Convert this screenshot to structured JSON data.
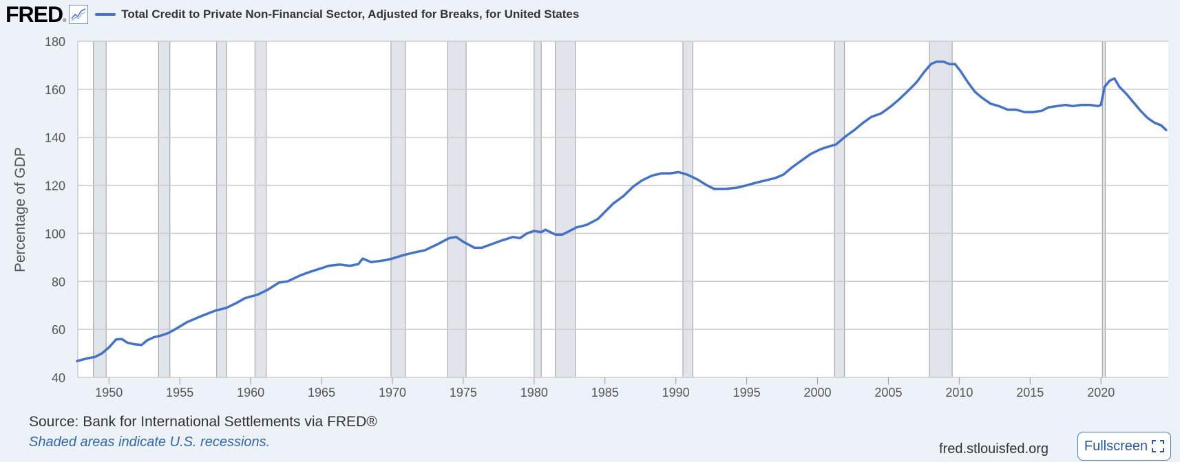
{
  "header": {
    "logo_text": "FRED",
    "logo_mark": "®",
    "graph_icon": "line-chart-icon",
    "series_title": "Total Credit to Private Non-Financial Sector, Adjusted for Breaks, for United States"
  },
  "footer": {
    "source": "Source: Bank for International Settlements via FRED®",
    "shaded_note": "Shaded areas indicate U.S. recessions.",
    "site_url": "fred.stlouisfed.org",
    "fullscreen_label": "Fullscreen",
    "fullscreen_icon": "expand-icon"
  },
  "colors": {
    "line": "#4472c4",
    "recession": "#e1e5eb",
    "grid": "#cccccc",
    "background": "#edf2f9"
  },
  "chart_data": {
    "type": "line",
    "title": "Total Credit to Private Non-Financial Sector, Adjusted for Breaks, for United States",
    "xlabel": "",
    "ylabel": "Percentage of GDP",
    "xlim": [
      1947.8,
      2024.75
    ],
    "ylim": [
      40,
      180
    ],
    "grid": true,
    "yticks": [
      40,
      60,
      80,
      100,
      120,
      140,
      160,
      180
    ],
    "xticks": [
      1950,
      1955,
      1960,
      1965,
      1970,
      1975,
      1980,
      1985,
      1990,
      1995,
      2000,
      2005,
      2010,
      2015,
      2020
    ],
    "recessions": [
      [
        1948.9,
        1949.8
      ],
      [
        1953.5,
        1954.3
      ],
      [
        1957.6,
        1958.3
      ],
      [
        1960.3,
        1961.1
      ],
      [
        1969.9,
        1970.9
      ],
      [
        1973.9,
        1975.2
      ],
      [
        1980.0,
        1980.5
      ],
      [
        1981.5,
        1982.9
      ],
      [
        1990.5,
        1991.2
      ],
      [
        2001.2,
        2001.9
      ],
      [
        2007.9,
        2009.5
      ],
      [
        2020.1,
        2020.3
      ]
    ],
    "series": [
      {
        "name": "Total Credit to Private Non-Financial Sector, Adjusted for Breaks, for United States",
        "x": [
          1947.75,
          1948.5,
          1949.0,
          1949.5,
          1950.0,
          1950.5,
          1950.9,
          1951.3,
          1951.8,
          1952.3,
          1952.7,
          1953.2,
          1953.7,
          1954.2,
          1954.8,
          1955.5,
          1956.5,
          1957.5,
          1958.3,
          1959.0,
          1959.6,
          1960.5,
          1961.2,
          1962.0,
          1962.6,
          1963.5,
          1964.2,
          1965.0,
          1965.5,
          1966.3,
          1967.0,
          1967.6,
          1967.9,
          1968.5,
          1969.5,
          1970.0,
          1970.8,
          1971.5,
          1972.3,
          1973.2,
          1974.0,
          1974.5,
          1975.0,
          1975.8,
          1976.3,
          1977.0,
          1977.7,
          1978.5,
          1979.0,
          1979.5,
          1980.0,
          1980.5,
          1980.8,
          1981.5,
          1982.0,
          1982.5,
          1983.0,
          1983.7,
          1984.5,
          1985.0,
          1985.6,
          1986.3,
          1987.0,
          1987.6,
          1988.3,
          1989.0,
          1989.6,
          1990.2,
          1990.8,
          1991.5,
          1992.2,
          1992.7,
          1993.5,
          1994.3,
          1995.0,
          1995.6,
          1996.3,
          1997.0,
          1997.6,
          1998.2,
          1998.8,
          1999.5,
          2000.2,
          2000.7,
          2001.3,
          2002.0,
          2002.6,
          2003.2,
          2003.8,
          2004.5,
          2005.2,
          2005.8,
          2006.5,
          2007.0,
          2007.5,
          2008.0,
          2008.4,
          2008.9,
          2009.3,
          2009.7,
          2010.1,
          2010.6,
          2011.1,
          2011.6,
          2012.2,
          2012.8,
          2013.4,
          2014.0,
          2014.6,
          2015.2,
          2015.8,
          2016.3,
          2016.9,
          2017.5,
          2018.0,
          2018.6,
          2019.2,
          2019.8,
          2020.0,
          2020.25,
          2020.6,
          2020.95,
          2021.3,
          2021.8,
          2022.3,
          2022.8,
          2023.3,
          2023.8,
          2024.25,
          2024.6
        ],
        "y": [
          46.8,
          48.0,
          48.5,
          50.0,
          52.5,
          55.8,
          56.0,
          54.5,
          53.8,
          53.5,
          55.5,
          56.8,
          57.5,
          58.5,
          60.5,
          63.0,
          65.5,
          67.8,
          69.0,
          71.0,
          73.0,
          74.5,
          76.5,
          79.5,
          80.0,
          82.5,
          84.0,
          85.5,
          86.5,
          87.0,
          86.5,
          87.2,
          89.5,
          88.0,
          88.8,
          89.5,
          91.0,
          92.0,
          93.0,
          95.5,
          98.0,
          98.5,
          96.5,
          94.0,
          94.0,
          95.5,
          97.0,
          98.5,
          98.0,
          100.0,
          101.0,
          100.5,
          101.5,
          99.5,
          99.5,
          101.0,
          102.5,
          103.5,
          106.0,
          109.0,
          112.5,
          115.5,
          119.5,
          122.0,
          124.0,
          125.0,
          125.0,
          125.5,
          124.5,
          122.5,
          120.0,
          118.5,
          118.5,
          119.0,
          120.0,
          121.0,
          122.0,
          123.0,
          124.5,
          127.5,
          130.0,
          133.0,
          135.0,
          136.0,
          137.0,
          140.5,
          143.0,
          146.0,
          148.5,
          150.0,
          153.0,
          156.0,
          160.0,
          163.0,
          167.0,
          170.5,
          171.5,
          171.5,
          170.5,
          170.5,
          167.5,
          163.0,
          159.0,
          156.5,
          154.0,
          153.0,
          151.5,
          151.5,
          150.5,
          150.5,
          151.0,
          152.5,
          153.0,
          153.5,
          153.0,
          153.5,
          153.5,
          153.0,
          153.5,
          161.0,
          163.5,
          164.5,
          161.0,
          158.0,
          154.5,
          151.0,
          148.0,
          146.0,
          145.0,
          143.0
        ]
      }
    ]
  }
}
